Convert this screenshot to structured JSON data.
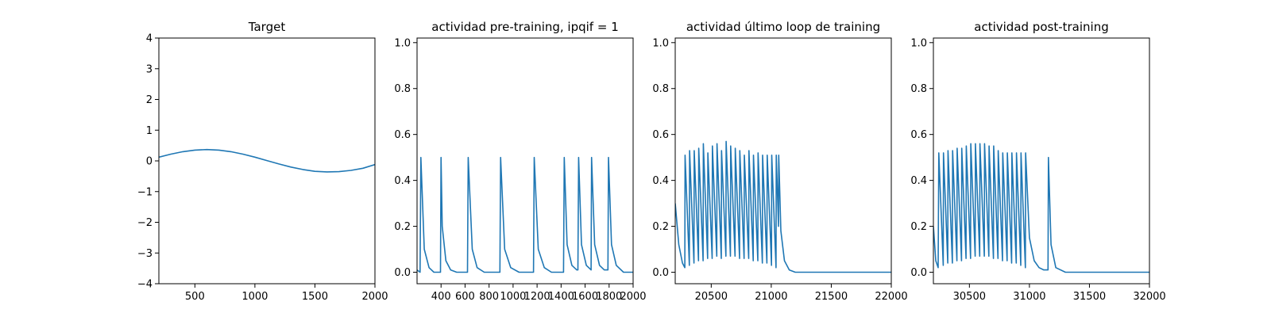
{
  "figure": {
    "line_color": "#1f77b4"
  },
  "chart_data": [
    {
      "type": "line",
      "title": "Target",
      "xlabel": "",
      "ylabel": "",
      "xlim": [
        200,
        2000
      ],
      "ylim": [
        -4,
        4
      ],
      "xticks": [
        500,
        1000,
        1500,
        2000
      ],
      "xtick_labels": [
        "500",
        "1000",
        "1500",
        "2000"
      ],
      "yticks": [
        -4,
        -3,
        -2,
        -1,
        0,
        1,
        2,
        3,
        4
      ],
      "ytick_labels": [
        "−4",
        "−3",
        "−2",
        "−1",
        "0",
        "1",
        "2",
        "3",
        "4"
      ],
      "grid": false,
      "series": [
        {
          "x": [
            200,
            300,
            400,
            500,
            600,
            700,
            800,
            900,
            1000,
            1100,
            1200,
            1300,
            1400,
            1500,
            1600,
            1700,
            1800,
            1900,
            2000
          ],
          "y": [
            0.12,
            0.22,
            0.3,
            0.35,
            0.37,
            0.35,
            0.3,
            0.22,
            0.12,
            0.01,
            -0.1,
            -0.2,
            -0.28,
            -0.34,
            -0.36,
            -0.35,
            -0.31,
            -0.24,
            -0.12
          ]
        }
      ]
    },
    {
      "type": "line",
      "title": "actividad pre-training, ipqif = 1",
      "xlabel": "",
      "ylabel": "",
      "xlim": [
        200,
        2000
      ],
      "ylim": [
        -0.05,
        1.02
      ],
      "xticks": [
        400,
        600,
        800,
        1000,
        1200,
        1400,
        1600,
        1800,
        2000
      ],
      "xtick_labels": [
        "400",
        "600",
        "800",
        "1000",
        "1200",
        "1400",
        "1600",
        "1800",
        "2000"
      ],
      "yticks": [
        0,
        0.2,
        0.4,
        0.6,
        0.8,
        1.0
      ],
      "ytick_labels": [
        "0.0",
        "0.2",
        "0.4",
        "0.6",
        "0.8",
        "1.0"
      ],
      "grid": false,
      "series": [
        {
          "x": [
            200,
            225,
            232,
            260,
            300,
            340,
            395,
            400,
            410,
            440,
            480,
            530,
            590,
            620,
            626,
            660,
            700,
            760,
            830,
            890,
            896,
            930,
            980,
            1050,
            1120,
            1170,
            1176,
            1210,
            1260,
            1320,
            1380,
            1420,
            1426,
            1450,
            1490,
            1530,
            1540,
            1546,
            1570,
            1610,
            1650,
            1654,
            1680,
            1720,
            1760,
            1790,
            1795,
            1820,
            1860,
            1920,
            2000
          ],
          "y": [
            0.01,
            0.0,
            0.5,
            0.1,
            0.02,
            0.0,
            0.0,
            0.5,
            0.2,
            0.05,
            0.01,
            0.0,
            0.0,
            0.0,
            0.5,
            0.1,
            0.02,
            0.0,
            0.0,
            0.0,
            0.5,
            0.1,
            0.02,
            0.0,
            0.0,
            0.0,
            0.5,
            0.1,
            0.02,
            0.0,
            0.0,
            0.0,
            0.5,
            0.12,
            0.03,
            0.01,
            0.01,
            0.5,
            0.12,
            0.03,
            0.01,
            0.5,
            0.12,
            0.03,
            0.01,
            0.01,
            0.5,
            0.12,
            0.03,
            0.0,
            0.0
          ]
        }
      ]
    },
    {
      "type": "line",
      "title": "actividad último loop de training",
      "xlabel": "",
      "ylabel": "",
      "xlim": [
        20200,
        22000
      ],
      "ylim": [
        -0.05,
        1.02
      ],
      "xticks": [
        20500,
        21000,
        21500,
        22000
      ],
      "xtick_labels": [
        "20500",
        "21000",
        "21500",
        "22000"
      ],
      "yticks": [
        0,
        0.2,
        0.4,
        0.6,
        0.8,
        1.0
      ],
      "ytick_labels": [
        "0.0",
        "0.2",
        "0.4",
        "0.6",
        "0.8",
        "1.0"
      ],
      "grid": false,
      "series": [
        {
          "x": [
            20200,
            20230,
            20260,
            20280,
            20282,
            20318,
            20320,
            20356,
            20358,
            20394,
            20396,
            20432,
            20434,
            20470,
            20472,
            20508,
            20510,
            20546,
            20548,
            20584,
            20586,
            20622,
            20624,
            20660,
            20662,
            20698,
            20700,
            20736,
            20738,
            20774,
            20776,
            20812,
            20814,
            20850,
            20852,
            20888,
            20890,
            20926,
            20928,
            20964,
            20966,
            21002,
            21004,
            21040,
            21042,
            21060,
            21062,
            21080,
            21110,
            21150,
            21200,
            21300,
            21500,
            22000
          ],
          "y": [
            0.3,
            0.12,
            0.04,
            0.02,
            0.51,
            0.03,
            0.53,
            0.04,
            0.53,
            0.05,
            0.54,
            0.05,
            0.56,
            0.06,
            0.52,
            0.06,
            0.55,
            0.07,
            0.56,
            0.06,
            0.53,
            0.07,
            0.57,
            0.07,
            0.55,
            0.07,
            0.54,
            0.06,
            0.53,
            0.06,
            0.51,
            0.06,
            0.53,
            0.05,
            0.51,
            0.05,
            0.52,
            0.04,
            0.51,
            0.04,
            0.51,
            0.03,
            0.51,
            0.02,
            0.51,
            0.2,
            0.51,
            0.18,
            0.05,
            0.01,
            0.0,
            0.0,
            0.0,
            0.0
          ]
        }
      ]
    },
    {
      "type": "line",
      "title": "actividad post-training",
      "xlabel": "",
      "ylabel": "",
      "xlim": [
        30200,
        32000
      ],
      "ylim": [
        -0.05,
        1.02
      ],
      "xticks": [
        30500,
        31000,
        31500,
        32000
      ],
      "xtick_labels": [
        "30500",
        "31000",
        "31500",
        "32000"
      ],
      "yticks": [
        0,
        0.2,
        0.4,
        0.6,
        0.8,
        1.0
      ],
      "ytick_labels": [
        "0.0",
        "0.2",
        "0.4",
        "0.6",
        "0.8",
        "1.0"
      ],
      "grid": false,
      "series": [
        {
          "x": [
            30200,
            30220,
            30240,
            30245,
            30282,
            30284,
            30320,
            30322,
            30358,
            30360,
            30396,
            30398,
            30434,
            30436,
            30472,
            30474,
            30510,
            30512,
            30548,
            30550,
            30586,
            30588,
            30624,
            30626,
            30662,
            30664,
            30700,
            30702,
            30738,
            30740,
            30776,
            30778,
            30814,
            30816,
            30852,
            30854,
            30890,
            30892,
            30928,
            30930,
            30966,
            30968,
            31000,
            31040,
            31080,
            31120,
            31155,
            31158,
            31180,
            31220,
            31300,
            31500,
            32000
          ],
          "y": [
            0.2,
            0.05,
            0.02,
            0.52,
            0.03,
            0.52,
            0.04,
            0.53,
            0.04,
            0.53,
            0.05,
            0.54,
            0.05,
            0.54,
            0.06,
            0.55,
            0.06,
            0.56,
            0.07,
            0.56,
            0.07,
            0.56,
            0.07,
            0.56,
            0.07,
            0.55,
            0.06,
            0.55,
            0.06,
            0.53,
            0.05,
            0.52,
            0.05,
            0.52,
            0.04,
            0.52,
            0.04,
            0.52,
            0.03,
            0.52,
            0.02,
            0.52,
            0.15,
            0.05,
            0.02,
            0.01,
            0.01,
            0.5,
            0.12,
            0.02,
            0.0,
            0.0,
            0.0
          ]
        }
      ]
    }
  ]
}
